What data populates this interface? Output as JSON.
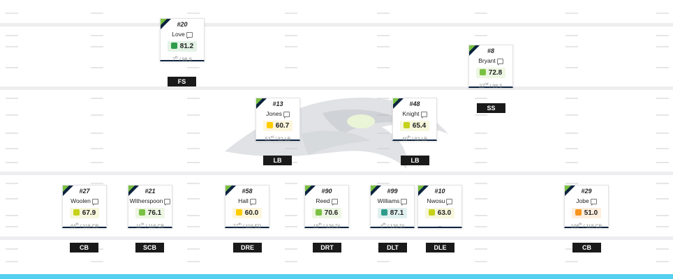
{
  "colors": {
    "navy": "#0c2340",
    "accent_green": "#7ac143",
    "bottom_bar": "#55cfef",
    "grade_scale": {
      "dark_green": "#2e9c4a",
      "green": "#7ac143",
      "lime": "#c6d11a",
      "yellow": "#ffcc00",
      "orange": "#f7941d",
      "teal": "#2e9c8a"
    }
  },
  "logo": {
    "icon": "seahawks-logo-icon"
  },
  "players": [
    {
      "id": "love",
      "number": "#20",
      "name": "Love",
      "grade": "81.2",
      "grade_color": "#2e9c4a",
      "grade_bg": "#e3f3e6",
      "rank": "7",
      "rank_suffix": "th",
      "rank_rest": " / 98 S",
      "position": "FS"
    },
    {
      "id": "bryant",
      "number": "#8",
      "name": "Bryant",
      "grade": "72.8",
      "grade_color": "#7ac143",
      "grade_bg": "#edf6e2",
      "rank": "22",
      "rank_suffix": "nd",
      "rank_rest": " / 98 S",
      "position": "SS"
    },
    {
      "id": "jones",
      "number": "#13",
      "name": "Jones",
      "grade": "60.7",
      "grade_color": "#ffcc00",
      "grade_bg": "#fdf6dc",
      "rank": "53",
      "rank_suffix": "rd",
      "rank_rest": " / 82 LB",
      "position": "LB"
    },
    {
      "id": "knight",
      "number": "#48",
      "name": "Knight",
      "grade": "65.4",
      "grade_color": "#c6d11a",
      "grade_bg": "#f6f7dc",
      "rank": "40",
      "rank_suffix": "th",
      "rank_rest": " / 82 LB",
      "position": "LB"
    },
    {
      "id": "woolen",
      "number": "#27",
      "name": "Woolen",
      "grade": "67.9",
      "grade_color": "#c6d11a",
      "grade_bg": "#f6f7dc",
      "rank": "44",
      "rank_suffix": "th",
      "rank_rest": " / 118 CB",
      "position": "CB"
    },
    {
      "id": "witherspoon",
      "number": "#21",
      "name": "Witherspoon",
      "grade": "76.1",
      "grade_color": "#7ac143",
      "grade_bg": "#edf6e2",
      "rank": "11",
      "rank_suffix": "th",
      "rank_rest": " / 118 CB",
      "position": "SCB"
    },
    {
      "id": "hall",
      "number": "#58",
      "name": "Hall",
      "grade": "60.0",
      "grade_color": "#ffcc00",
      "grade_bg": "#fdf6dc",
      "rank": "77",
      "rank_suffix": "th",
      "rank_rest": " / 119 ED",
      "position": "DRE"
    },
    {
      "id": "reed",
      "number": "#90",
      "name": "Reed",
      "grade": "70.6",
      "grade_color": "#7ac143",
      "grade_bg": "#edf6e2",
      "rank": "19",
      "rank_suffix": "th",
      "rank_rest": " / 126 DI",
      "position": "DRT"
    },
    {
      "id": "williams",
      "number": "#99",
      "name": "Williams",
      "grade": "87.1",
      "grade_color": "#2e9c8a",
      "grade_bg": "#dff0ee",
      "rank": "4",
      "rank_suffix": "th",
      "rank_rest": " / 126 DI",
      "position": "DLT"
    },
    {
      "id": "nwosu",
      "number": "#10",
      "name": "Nwosu",
      "grade": "63.0",
      "grade_color": "#c6d11a",
      "grade_bg": "#f6f7dc",
      "rank": "",
      "rank_suffix": "",
      "rank_rest": "--",
      "position": "DLE"
    },
    {
      "id": "jobe",
      "number": "#29",
      "name": "Jobe",
      "grade": "51.0",
      "grade_color": "#f7941d",
      "grade_bg": "#fdeedd",
      "rank": "108",
      "rank_suffix": "th",
      "rank_rest": " / 118 CB",
      "position": "CB"
    }
  ]
}
